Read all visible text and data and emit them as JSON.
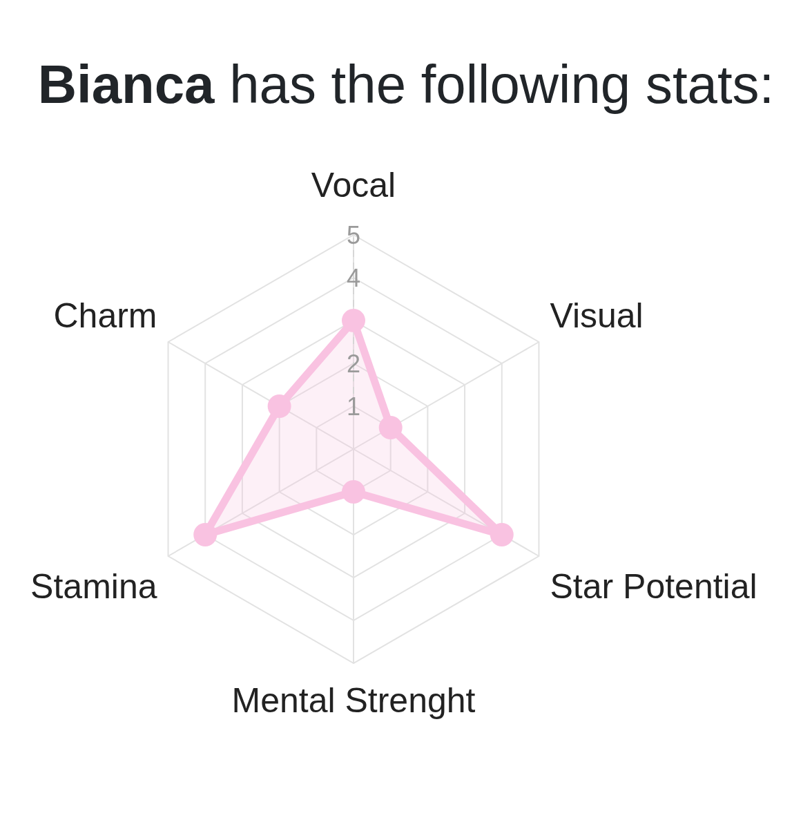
{
  "chart_data": {
    "type": "radar",
    "title": "Bianca has the following stats:",
    "categories": [
      "Vocal",
      "Visual",
      "Star Potential",
      "Mental Strenght",
      "Stamina",
      "Charm"
    ],
    "series": [
      {
        "color": "#f9c2e1",
        "values": [
          3,
          1,
          4,
          1,
          4,
          2
        ]
      }
    ],
    "ylim": [
      0,
      5
    ],
    "yticks": [
      1,
      2,
      4,
      5
    ],
    "grid": true,
    "marker": "circle",
    "line_style": "solid"
  }
}
